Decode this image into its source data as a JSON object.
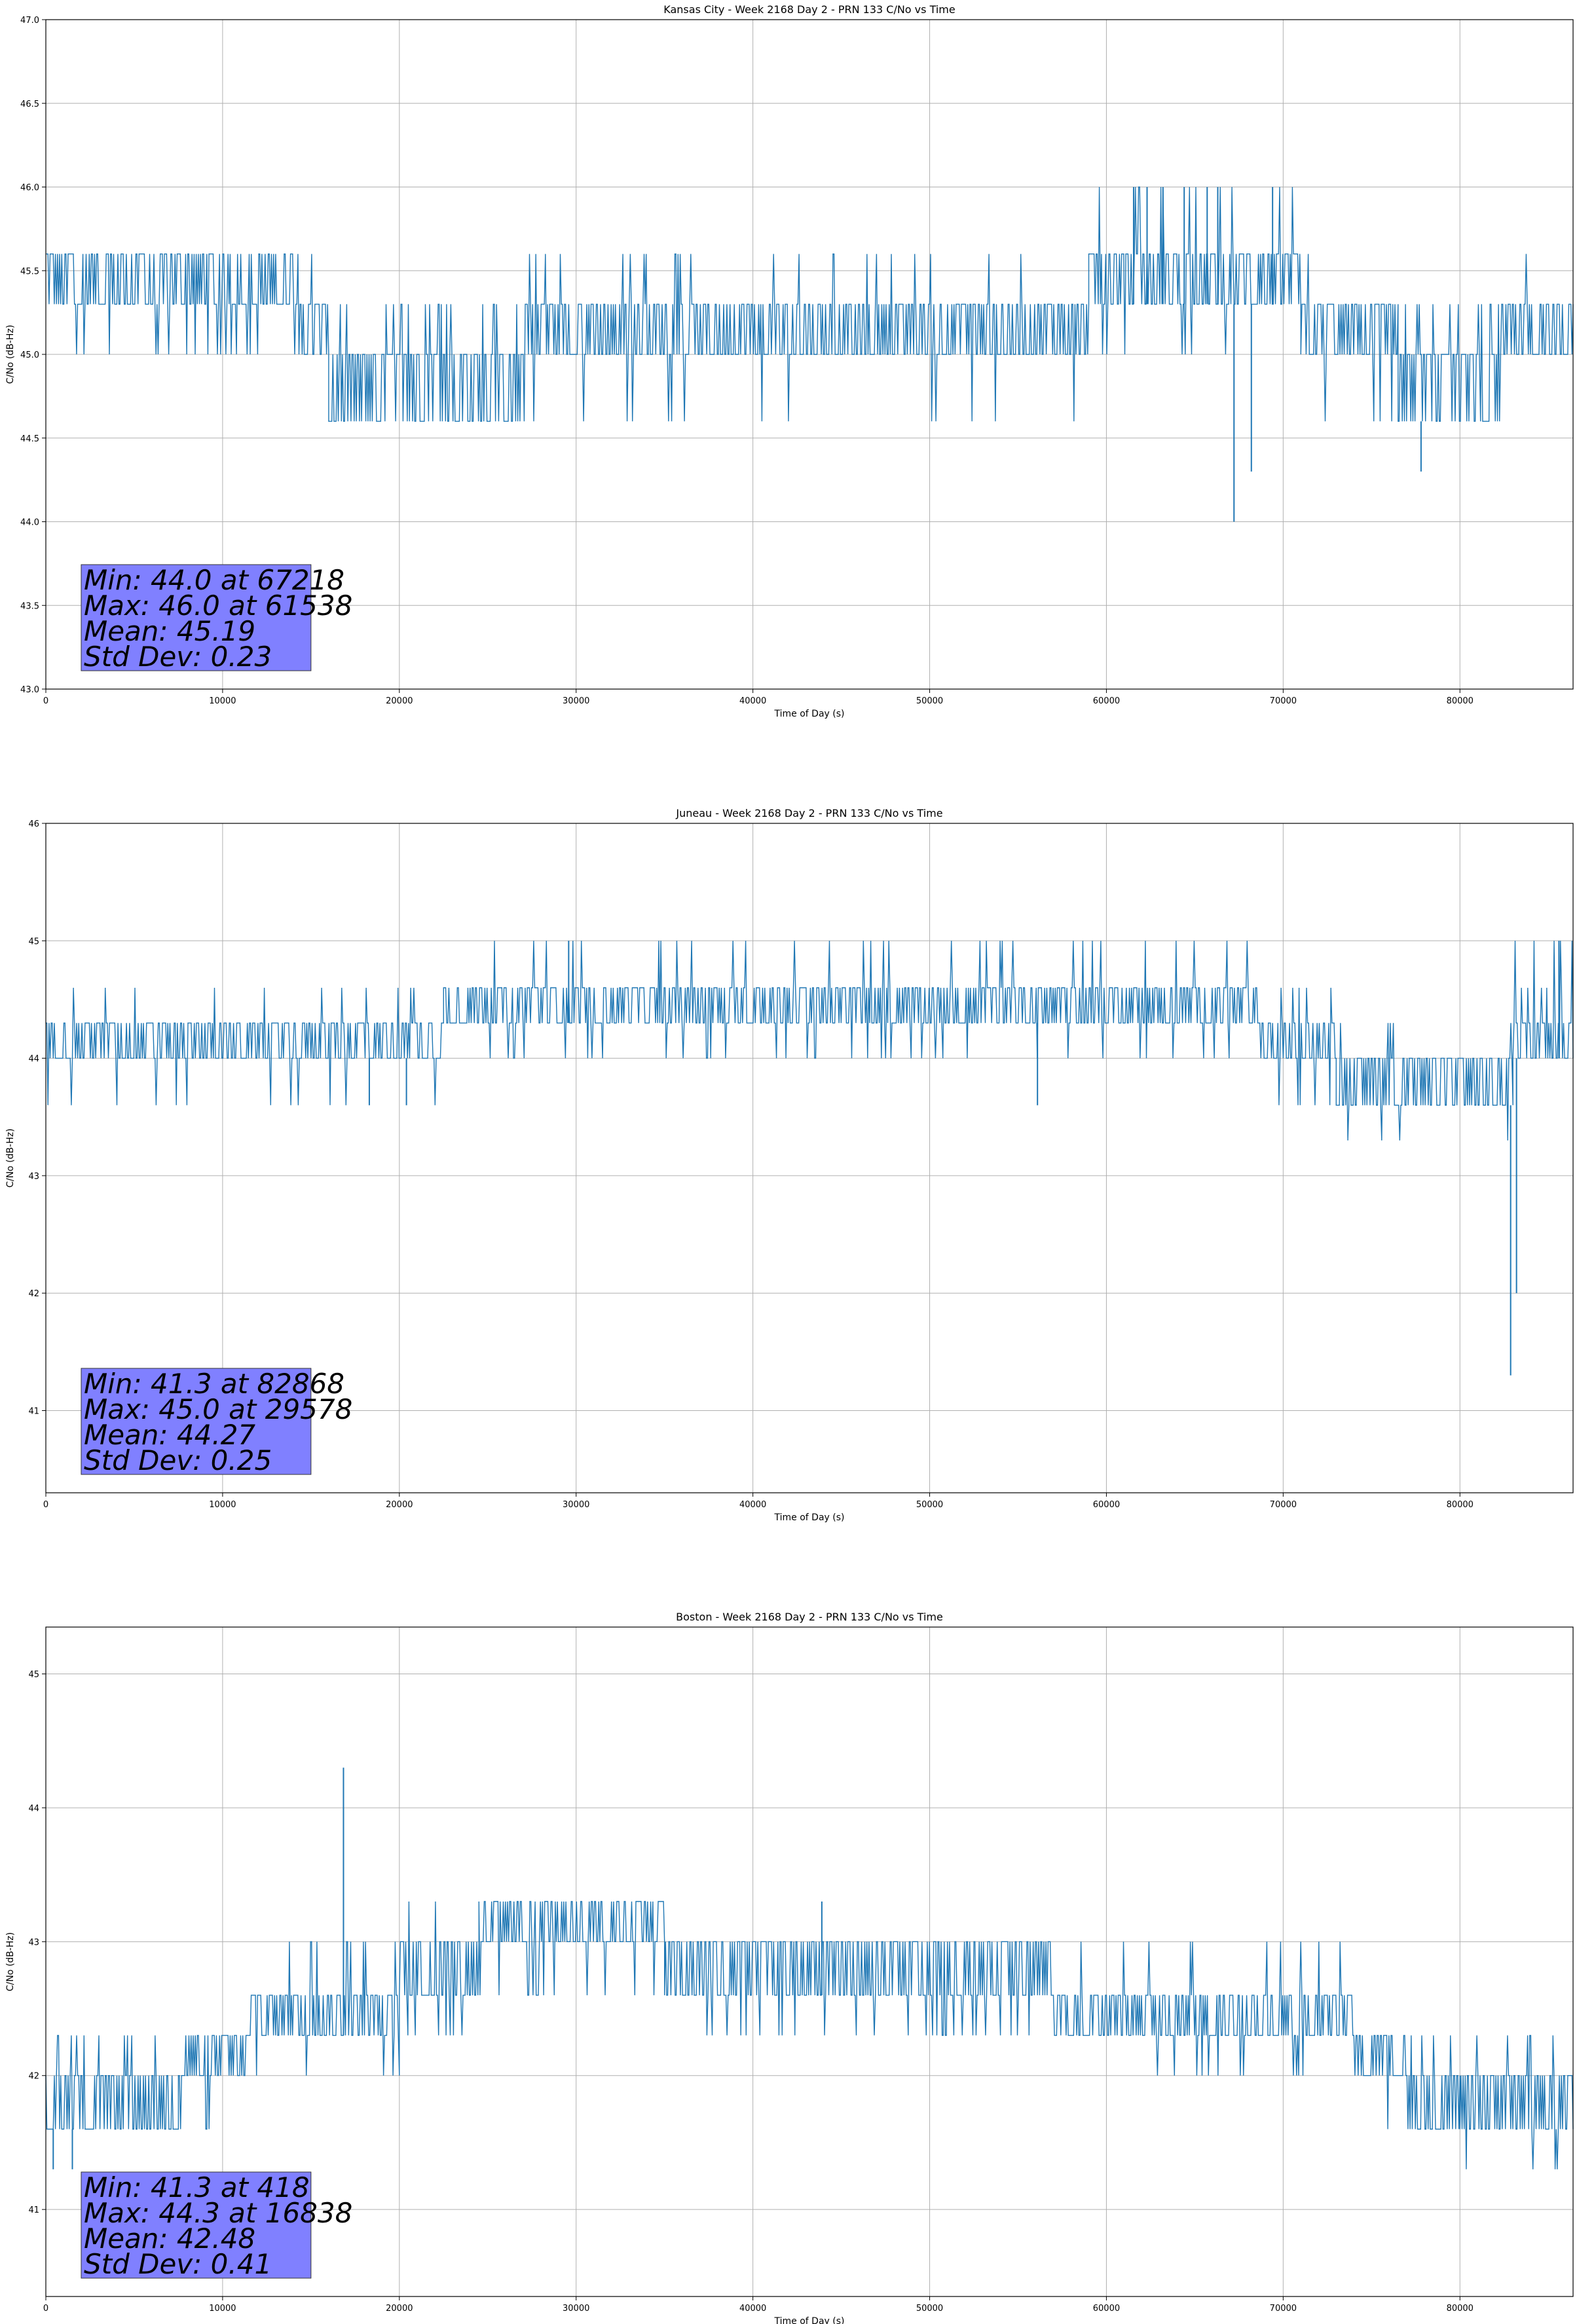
{
  "chart_data": [
    {
      "type": "line",
      "title": "Kansas City - Week 2168 Day 2 - PRN 133 C/No vs Time",
      "xlabel": "Time of Day (s)",
      "ylabel": "C/No (dB-Hz)",
      "xlim": [
        0,
        86400
      ],
      "ylim": [
        43.0,
        47.0
      ],
      "xticks": [
        0,
        10000,
        20000,
        30000,
        40000,
        50000,
        60000,
        70000,
        80000
      ],
      "yticks": [
        43.0,
        43.5,
        44.0,
        44.5,
        45.0,
        45.5,
        46.0,
        46.5,
        47.0
      ],
      "ytick_labels": [
        "43.0",
        "43.5",
        "44.0",
        "44.5",
        "45.0",
        "45.5",
        "46.0",
        "46.5",
        "47.0"
      ],
      "grid": true,
      "series_color": "#1f77b4",
      "stats": [
        "Min: 44.0 at 67218",
        "Max: 46.0 at 61538",
        "Mean: 45.19",
        "Std Dev: 0.23"
      ],
      "segments": [
        {
          "x": [
            0,
            14500
          ],
          "low": 45.3,
          "high": 45.6,
          "dips": [
            45.0
          ]
        },
        {
          "x": [
            14500,
            16000
          ],
          "low": 45.0,
          "high": 45.3,
          "dips": [
            45.6
          ]
        },
        {
          "x": [
            16000,
            27000
          ],
          "low": 44.6,
          "high": 45.0,
          "dips": [
            45.3
          ]
        },
        {
          "x": [
            27000,
            59000
          ],
          "low": 45.0,
          "high": 45.3,
          "dips": [
            44.6,
            45.6
          ]
        },
        {
          "x": [
            59000,
            71000
          ],
          "low": 45.3,
          "high": 45.6,
          "dips": [
            45.0,
            46.0
          ]
        },
        {
          "x": [
            71000,
            76500
          ],
          "low": 45.0,
          "high": 45.3,
          "dips": [
            45.6,
            44.6
          ]
        },
        {
          "x": [
            76500,
            82000
          ],
          "low": 44.6,
          "high": 45.0,
          "dips": [
            45.3
          ]
        },
        {
          "x": [
            82000,
            86400
          ],
          "low": 45.0,
          "high": 45.3,
          "dips": [
            45.6,
            44.6
          ]
        }
      ],
      "spikes": [
        {
          "x": 67218,
          "y": 44.0
        },
        {
          "x": 68200,
          "y": 44.3
        },
        {
          "x": 77800,
          "y": 44.3
        },
        {
          "x": 61538,
          "y": 46.0
        },
        {
          "x": 62300,
          "y": 46.0
        },
        {
          "x": 63200,
          "y": 46.0
        },
        {
          "x": 64400,
          "y": 46.0
        },
        {
          "x": 65700,
          "y": 46.0
        },
        {
          "x": 66300,
          "y": 46.0
        },
        {
          "x": 69400,
          "y": 46.0
        }
      ]
    },
    {
      "type": "line",
      "title": "Juneau - Week 2168 Day 2 - PRN 133 C/No vs Time",
      "xlabel": "Time of Day (s)",
      "ylabel": "C/No (dB-Hz)",
      "xlim": [
        0,
        86400
      ],
      "ylim": [
        40.3,
        46.0
      ],
      "xticks": [
        0,
        10000,
        20000,
        30000,
        40000,
        50000,
        60000,
        70000,
        80000
      ],
      "yticks": [
        41,
        42,
        43,
        44,
        45,
        46
      ],
      "ytick_labels": [
        "41",
        "42",
        "43",
        "44",
        "45",
        "46"
      ],
      "grid": true,
      "series_color": "#1f77b4",
      "stats": [
        "Min: 41.3 at 82868",
        "Max: 45.0 at 29578",
        "Mean: 44.27",
        "Std Dev: 0.25"
      ],
      "segments": [
        {
          "x": [
            0,
            22500
          ],
          "low": 44.0,
          "high": 44.3,
          "dips": [
            44.6,
            43.6
          ]
        },
        {
          "x": [
            22500,
            68500
          ],
          "low": 44.3,
          "high": 44.6,
          "dips": [
            44.0,
            45.0
          ]
        },
        {
          "x": [
            68500,
            73000
          ],
          "low": 44.0,
          "high": 44.3,
          "dips": [
            44.6,
            43.6
          ]
        },
        {
          "x": [
            73000,
            83000
          ],
          "low": 43.6,
          "high": 44.0,
          "dips": [
            44.3,
            43.3
          ]
        },
        {
          "x": [
            83000,
            86400
          ],
          "low": 44.0,
          "high": 44.3,
          "dips": [
            44.6,
            45.0
          ]
        }
      ],
      "spikes": [
        {
          "x": 82868,
          "y": 41.3
        },
        {
          "x": 83200,
          "y": 42.0
        },
        {
          "x": 29578,
          "y": 45.0
        },
        {
          "x": 18300,
          "y": 43.6
        },
        {
          "x": 20400,
          "y": 43.6
        },
        {
          "x": 56100,
          "y": 43.6
        },
        {
          "x": 85600,
          "y": 45.0
        }
      ]
    },
    {
      "type": "line",
      "title": "Boston - Week 2168 Day 2 - PRN 133 C/No vs Time",
      "xlabel": "Time of Day (s)",
      "ylabel": "C/No (dB-Hz)",
      "xlim": [
        0,
        86400
      ],
      "ylim": [
        40.35,
        45.35
      ],
      "xticks": [
        0,
        10000,
        20000,
        30000,
        40000,
        50000,
        60000,
        70000,
        80000
      ],
      "yticks": [
        41,
        42,
        43,
        44,
        45
      ],
      "ytick_labels": [
        "41",
        "42",
        "43",
        "44",
        "45"
      ],
      "grid": true,
      "series_color": "#1f77b4",
      "stats": [
        "Min: 41.3 at 418",
        "Max: 44.3 at 16838",
        "Mean: 42.48",
        "Std Dev: 0.41"
      ],
      "segments": [
        {
          "x": [
            0,
            7500
          ],
          "low": 41.6,
          "high": 42.0,
          "dips": [
            42.3
          ]
        },
        {
          "x": [
            7500,
            11500
          ],
          "low": 42.0,
          "high": 42.3,
          "dips": [
            41.6
          ]
        },
        {
          "x": [
            11500,
            13000
          ],
          "low": 42.3,
          "high": 42.6,
          "dips": [
            42.0
          ]
        },
        {
          "x": [
            13000,
            20000
          ],
          "low": 42.3,
          "high": 42.6,
          "dips": [
            43.0,
            42.0
          ]
        },
        {
          "x": [
            20000,
            24500
          ],
          "low": 42.6,
          "high": 43.0,
          "dips": [
            42.3,
            43.3
          ]
        },
        {
          "x": [
            24500,
            35000
          ],
          "low": 43.0,
          "high": 43.3,
          "dips": [
            42.6
          ]
        },
        {
          "x": [
            35000,
            57000
          ],
          "low": 42.6,
          "high": 43.0,
          "dips": [
            42.3
          ]
        },
        {
          "x": [
            57000,
            74000
          ],
          "low": 42.3,
          "high": 42.6,
          "dips": [
            43.0,
            42.0
          ]
        },
        {
          "x": [
            74000,
            77000
          ],
          "low": 42.0,
          "high": 42.3,
          "dips": [
            41.6
          ]
        },
        {
          "x": [
            77000,
            80000
          ],
          "low": 41.6,
          "high": 42.0,
          "dips": [
            42.3
          ]
        },
        {
          "x": [
            80000,
            86400
          ],
          "low": 41.6,
          "high": 42.0,
          "dips": [
            41.3,
            42.3
          ]
        }
      ],
      "spikes": [
        {
          "x": 16838,
          "y": 44.3
        },
        {
          "x": 418,
          "y": 41.3
        },
        {
          "x": 1500,
          "y": 41.3
        },
        {
          "x": 43900,
          "y": 43.3
        },
        {
          "x": 77400,
          "y": 41.6
        }
      ]
    }
  ]
}
